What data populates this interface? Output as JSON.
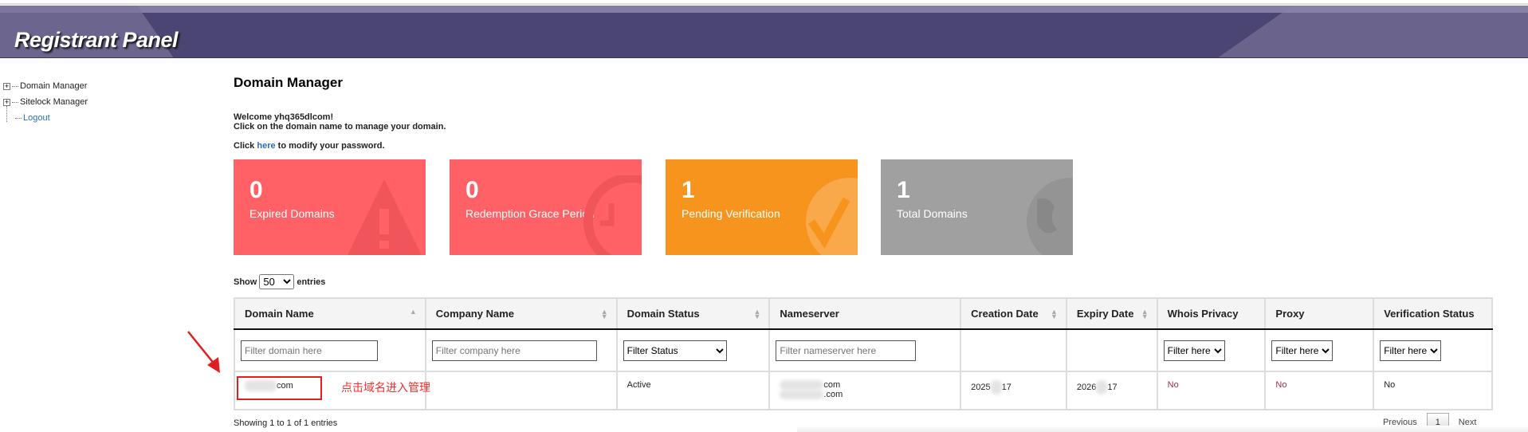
{
  "app": {
    "title": "Registrant Panel"
  },
  "sidebar": {
    "items": [
      {
        "label": "Domain Manager",
        "icon": "plus-expander-icon"
      },
      {
        "label": "Sitelock Manager",
        "icon": "plus-expander-icon"
      },
      {
        "label": "Logout"
      }
    ]
  },
  "page": {
    "title": "Domain Manager",
    "welcome": "Welcome yhq365dlcom!",
    "instruction": "Click on the domain name to manage your domain.",
    "pw_prefix": "Click ",
    "pw_link": "here",
    "pw_suffix": " to modify your password."
  },
  "cards": [
    {
      "count": "0",
      "label": "Expired Domains",
      "color": "#ff6166",
      "icon": "warning-icon"
    },
    {
      "count": "0",
      "label": "Redemption Grace Period",
      "color": "#ff6166",
      "icon": "clock-icon"
    },
    {
      "count": "1",
      "label": "Pending Verification",
      "color": "#f7941d",
      "icon": "check-icon"
    },
    {
      "count": "1",
      "label": "Total Domains",
      "color": "#a0a0a0",
      "icon": "globe-icon"
    }
  ],
  "length": {
    "show": "Show",
    "value": "50",
    "entries": "entries"
  },
  "table": {
    "headers": [
      "Domain Name",
      "Company Name",
      "Domain Status",
      "Nameserver",
      "Creation Date",
      "Expiry Date",
      "Whois Privacy",
      "Proxy",
      "Verification Status"
    ],
    "filters": {
      "domain": "Filter domain here",
      "company": "Filter company here",
      "status": "Filter Status",
      "nameserver": "Filter nameserver here",
      "whois": "Filter here",
      "proxy": "Filter here",
      "verification": "Filter here"
    },
    "rows": [
      {
        "domain": "com",
        "company": "",
        "status": "Active",
        "ns1": "com",
        "ns2": ".com",
        "created_a": "2025",
        "created_b": "17",
        "expiry_a": "2026",
        "expiry_b": "17",
        "whois": "No",
        "proxy": "No",
        "verification": "No"
      }
    ]
  },
  "annotation": {
    "text": "点击域名进入管理",
    "color": "#f03030"
  },
  "footer": {
    "info": "Showing 1 to 1 of 1 entries",
    "previous": "Previous",
    "page": "1",
    "next": "Next"
  }
}
